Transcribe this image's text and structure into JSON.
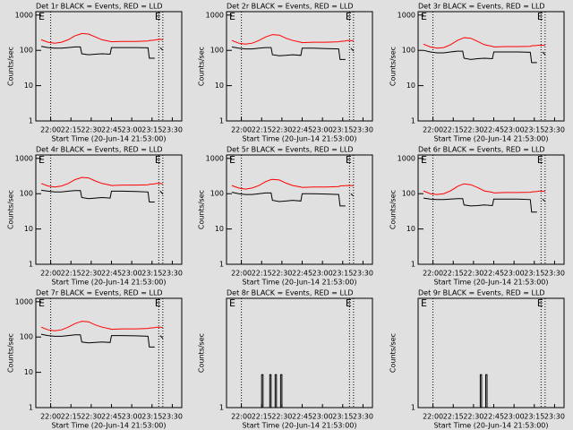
{
  "chart_data": [
    {
      "type": "line",
      "title": "Det 1r BLACK = Events, RED = LLD",
      "ylabel": "Counts/sec",
      "xlabel": "Start Time (20-Jun-14 21:53:00)",
      "log_y": true,
      "xlim": [
        -4,
        104
      ],
      "ylim": [
        1,
        1250
      ],
      "xticks": [
        {
          "value": 7,
          "label": "22:00"
        },
        {
          "value": 22,
          "label": "22:15"
        },
        {
          "value": 37,
          "label": "22:30"
        },
        {
          "value": 52,
          "label": "22:45"
        },
        {
          "value": 67,
          "label": "23:00"
        },
        {
          "value": 82,
          "label": "23:15"
        },
        {
          "value": 97,
          "label": "23:30"
        }
      ],
      "yticks": [
        1,
        10,
        100,
        1000
      ],
      "dotted_lines": [
        7,
        87,
        90
      ],
      "markers": [
        {
          "x": -2,
          "label": "E"
        },
        {
          "x": 84,
          "label": "E"
        }
      ],
      "x": [
        0,
        5,
        10,
        15,
        20,
        25,
        29,
        30,
        35,
        40,
        45,
        51,
        52,
        60,
        70,
        79,
        80,
        84,
        85,
        88,
        90
      ],
      "series": [
        {
          "name": "Events",
          "color": "#000000",
          "values": [
            130,
            120,
            115,
            115,
            120,
            125,
            125,
            80,
            75,
            78,
            80,
            78,
            120,
            120,
            120,
            118,
            60,
            60,
            null,
            120,
            100
          ]
        },
        {
          "name": "LLD",
          "color": "#ff0000",
          "values": [
            200,
            170,
            160,
            170,
            200,
            260,
            290,
            300,
            290,
            240,
            200,
            180,
            175,
            180,
            180,
            185,
            190,
            195,
            200,
            205,
            200
          ]
        }
      ]
    },
    {
      "type": "line",
      "title": "Det 2r BLACK = Events, RED = LLD",
      "ylabel": "Counts/sec",
      "xlabel": "Start Time (20-Jun-14 21:53:00)",
      "log_y": true,
      "xlim": [
        -4,
        104
      ],
      "ylim": [
        1,
        1250
      ],
      "xticks": [
        {
          "value": 7,
          "label": "22:00"
        },
        {
          "value": 22,
          "label": "22:15"
        },
        {
          "value": 37,
          "label": "22:30"
        },
        {
          "value": 52,
          "label": "22:45"
        },
        {
          "value": 67,
          "label": "23:00"
        },
        {
          "value": 82,
          "label": "23:15"
        },
        {
          "value": 97,
          "label": "23:30"
        }
      ],
      "yticks": [
        1,
        10,
        100,
        1000
      ],
      "dotted_lines": [
        7,
        87,
        90
      ],
      "markers": [
        {
          "x": -2,
          "label": "E"
        },
        {
          "x": 84,
          "label": "E"
        }
      ],
      "x": [
        0,
        5,
        10,
        15,
        20,
        25,
        29,
        30,
        35,
        40,
        45,
        51,
        52,
        60,
        70,
        79,
        80,
        84,
        85,
        88,
        90
      ],
      "series": [
        {
          "name": "Events",
          "color": "#000000",
          "values": [
            125,
            115,
            110,
            110,
            115,
            120,
            120,
            75,
            70,
            72,
            75,
            72,
            115,
            115,
            112,
            110,
            55,
            55,
            null,
            115,
            95
          ]
        },
        {
          "name": "LLD",
          "color": "#ff0000",
          "values": [
            190,
            160,
            150,
            160,
            190,
            240,
            270,
            280,
            270,
            220,
            190,
            170,
            165,
            170,
            170,
            175,
            180,
            185,
            190,
            190,
            185
          ]
        }
      ]
    },
    {
      "type": "line",
      "title": "Det 3r BLACK = Events, RED = LLD",
      "ylabel": "Counts/sec",
      "xlabel": "Start Time (20-Jun-14 21:53:00)",
      "log_y": true,
      "xlim": [
        -4,
        104
      ],
      "ylim": [
        1,
        1250
      ],
      "xticks": [
        {
          "value": 7,
          "label": "22:00"
        },
        {
          "value": 22,
          "label": "22:15"
        },
        {
          "value": 37,
          "label": "22:30"
        },
        {
          "value": 52,
          "label": "22:45"
        },
        {
          "value": 67,
          "label": "23:00"
        },
        {
          "value": 82,
          "label": "23:15"
        },
        {
          "value": 97,
          "label": "23:30"
        }
      ],
      "yticks": [
        1,
        10,
        100,
        1000
      ],
      "dotted_lines": [
        7,
        87,
        90
      ],
      "markers": [
        {
          "x": -2,
          "label": "E"
        },
        {
          "x": 84,
          "label": "E"
        }
      ],
      "x": [
        0,
        5,
        10,
        15,
        20,
        25,
        29,
        30,
        35,
        40,
        45,
        51,
        52,
        60,
        70,
        79,
        80,
        84,
        85,
        88,
        90
      ],
      "series": [
        {
          "name": "Events",
          "color": "#000000",
          "values": [
            100,
            90,
            85,
            85,
            90,
            95,
            95,
            60,
            55,
            58,
            60,
            58,
            90,
            90,
            90,
            88,
            45,
            45,
            null,
            90,
            75
          ]
        },
        {
          "name": "LLD",
          "color": "#ff0000",
          "values": [
            150,
            125,
            115,
            120,
            145,
            190,
            220,
            230,
            220,
            180,
            145,
            130,
            125,
            128,
            128,
            130,
            135,
            138,
            140,
            140,
            138
          ]
        }
      ]
    },
    {
      "type": "line",
      "title": "Det 4r BLACK = Events, RED = LLD",
      "ylabel": "Counts/sec",
      "xlabel": "Start Time (20-Jun-14 21:53:00)",
      "log_y": true,
      "xlim": [
        -4,
        104
      ],
      "ylim": [
        1,
        1250
      ],
      "xticks": [
        {
          "value": 7,
          "label": "22:00"
        },
        {
          "value": 22,
          "label": "22:15"
        },
        {
          "value": 37,
          "label": "22:30"
        },
        {
          "value": 52,
          "label": "22:45"
        },
        {
          "value": 67,
          "label": "23:00"
        },
        {
          "value": 82,
          "label": "23:15"
        },
        {
          "value": 97,
          "label": "23:30"
        }
      ],
      "yticks": [
        1,
        10,
        100,
        1000
      ],
      "dotted_lines": [
        7,
        87,
        90
      ],
      "markers": [
        {
          "x": -2,
          "label": "E"
        },
        {
          "x": 84,
          "label": "E"
        }
      ],
      "x": [
        0,
        5,
        10,
        15,
        20,
        25,
        29,
        30,
        35,
        40,
        45,
        51,
        52,
        60,
        70,
        79,
        80,
        84,
        85,
        88,
        90
      ],
      "series": [
        {
          "name": "Events",
          "color": "#000000",
          "values": [
            125,
            118,
            112,
            112,
            118,
            122,
            122,
            78,
            72,
            75,
            78,
            75,
            118,
            118,
            115,
            112,
            58,
            58,
            null,
            118,
            98
          ]
        },
        {
          "name": "LLD",
          "color": "#ff0000",
          "values": [
            195,
            165,
            155,
            165,
            195,
            250,
            280,
            290,
            280,
            230,
            195,
            175,
            170,
            175,
            175,
            180,
            185,
            190,
            195,
            195,
            190
          ]
        }
      ]
    },
    {
      "type": "line",
      "title": "Det 5r BLACK = Events, RED = LLD",
      "ylabel": "Counts/sec",
      "xlabel": "Start Time (20-Jun-14 21:53:00)",
      "log_y": true,
      "xlim": [
        -4,
        104
      ],
      "ylim": [
        1,
        1250
      ],
      "xticks": [
        {
          "value": 7,
          "label": "22:00"
        },
        {
          "value": 22,
          "label": "22:15"
        },
        {
          "value": 37,
          "label": "22:30"
        },
        {
          "value": 52,
          "label": "22:45"
        },
        {
          "value": 67,
          "label": "23:00"
        },
        {
          "value": 82,
          "label": "23:15"
        },
        {
          "value": 97,
          "label": "23:30"
        }
      ],
      "yticks": [
        1,
        10,
        100,
        1000
      ],
      "dotted_lines": [
        7,
        87,
        90
      ],
      "markers": [
        {
          "x": -2,
          "label": "E"
        },
        {
          "x": 84,
          "label": "E"
        }
      ],
      "x": [
        0,
        5,
        10,
        15,
        20,
        25,
        29,
        30,
        35,
        40,
        45,
        51,
        52,
        60,
        70,
        79,
        80,
        84,
        85,
        88,
        90
      ],
      "series": [
        {
          "name": "Events",
          "color": "#000000",
          "values": [
            110,
            100,
            95,
            95,
            100,
            105,
            105,
            65,
            60,
            62,
            65,
            62,
            100,
            100,
            98,
            95,
            45,
            45,
            null,
            100,
            85
          ]
        },
        {
          "name": "LLD",
          "color": "#ff0000",
          "values": [
            170,
            145,
            135,
            145,
            170,
            220,
            250,
            255,
            245,
            200,
            170,
            155,
            150,
            155,
            155,
            160,
            165,
            168,
            170,
            170,
            168
          ]
        }
      ]
    },
    {
      "type": "line",
      "title": "Det 6r BLACK = Events, RED = LLD",
      "ylabel": "Counts/sec",
      "xlabel": "Start Time (20-Jun-14 21:53:00)",
      "log_y": true,
      "xlim": [
        -4,
        104
      ],
      "ylim": [
        1,
        1250
      ],
      "xticks": [
        {
          "value": 7,
          "label": "22:00"
        },
        {
          "value": 22,
          "label": "22:15"
        },
        {
          "value": 37,
          "label": "22:30"
        },
        {
          "value": 52,
          "label": "22:45"
        },
        {
          "value": 67,
          "label": "23:00"
        },
        {
          "value": 82,
          "label": "23:15"
        },
        {
          "value": 97,
          "label": "23:30"
        }
      ],
      "yticks": [
        1,
        10,
        100,
        1000
      ],
      "dotted_lines": [
        7,
        87,
        90
      ],
      "markers": [
        {
          "x": -2,
          "label": "E"
        },
        {
          "x": 84,
          "label": "E"
        }
      ],
      "x": [
        0,
        5,
        10,
        15,
        20,
        25,
        29,
        30,
        35,
        40,
        45,
        51,
        52,
        60,
        70,
        79,
        80,
        84,
        85,
        88,
        90
      ],
      "series": [
        {
          "name": "Events",
          "color": "#000000",
          "values": [
            75,
            70,
            68,
            68,
            70,
            72,
            72,
            48,
            45,
            46,
            48,
            46,
            70,
            70,
            70,
            68,
            30,
            30,
            null,
            70,
            60
          ]
        },
        {
          "name": "LLD",
          "color": "#ff0000",
          "values": [
            120,
            100,
            95,
            100,
            120,
            160,
            185,
            190,
            180,
            150,
            120,
            110,
            105,
            108,
            108,
            110,
            112,
            115,
            118,
            118,
            115
          ]
        }
      ]
    },
    {
      "type": "line",
      "title": "Det 7r BLACK = Events, RED = LLD",
      "ylabel": "Counts/sec",
      "xlabel": "Start Time (20-Jun-14 21:53:00)",
      "log_y": true,
      "xlim": [
        -4,
        104
      ],
      "ylim": [
        1,
        1250
      ],
      "xticks": [
        {
          "value": 7,
          "label": "22:00"
        },
        {
          "value": 22,
          "label": "22:15"
        },
        {
          "value": 37,
          "label": "22:30"
        },
        {
          "value": 52,
          "label": "22:45"
        },
        {
          "value": 67,
          "label": "23:00"
        },
        {
          "value": 82,
          "label": "23:15"
        },
        {
          "value": 97,
          "label": "23:30"
        }
      ],
      "yticks": [
        1,
        10,
        100,
        1000
      ],
      "dotted_lines": [
        7,
        87,
        90
      ],
      "markers": [
        {
          "x": -2,
          "label": "E"
        },
        {
          "x": 84,
          "label": "E"
        }
      ],
      "x": [
        0,
        5,
        10,
        15,
        20,
        25,
        29,
        30,
        35,
        40,
        45,
        51,
        52,
        60,
        70,
        79,
        80,
        84,
        85,
        88,
        90
      ],
      "series": [
        {
          "name": "Events",
          "color": "#000000",
          "values": [
            120,
            110,
            105,
            105,
            110,
            115,
            115,
            72,
            68,
            70,
            72,
            70,
            110,
            110,
            108,
            105,
            52,
            52,
            null,
            110,
            92
          ]
        },
        {
          "name": "LLD",
          "color": "#ff0000",
          "values": [
            190,
            160,
            150,
            160,
            190,
            240,
            270,
            280,
            270,
            220,
            190,
            170,
            165,
            170,
            170,
            175,
            180,
            185,
            190,
            190,
            185
          ]
        }
      ]
    },
    {
      "type": "line",
      "title": "Det 8r BLACK = Events, RED = LLD",
      "ylabel": "Counts/sec",
      "xlabel": "Start Time (20-Jun-14 21:53:00)",
      "log_y": true,
      "xlim": [
        -4,
        104
      ],
      "ylim": [
        1,
        10
      ],
      "xticks": [
        {
          "value": 7,
          "label": "22:00"
        },
        {
          "value": 22,
          "label": "22:15"
        },
        {
          "value": 37,
          "label": "22:30"
        },
        {
          "value": 52,
          "label": "22:45"
        },
        {
          "value": 67,
          "label": "23:00"
        },
        {
          "value": 82,
          "label": "23:15"
        },
        {
          "value": 97,
          "label": "23:30"
        }
      ],
      "yticks": [
        1
      ],
      "dotted_lines": [
        7,
        87,
        90
      ],
      "markers": [
        {
          "x": -2,
          "label": "E"
        },
        {
          "x": 84,
          "label": "E"
        }
      ],
      "x": [
        0,
        22,
        22,
        23,
        23,
        28,
        28,
        29,
        29,
        32,
        32,
        33,
        33,
        36,
        36,
        37,
        37,
        97
      ],
      "series": [
        {
          "name": "Events",
          "color": "#000000",
          "values": [
            1,
            1,
            2,
            2,
            1,
            1,
            2,
            2,
            1,
            1,
            2,
            2,
            1,
            1,
            2,
            2,
            1,
            1
          ]
        }
      ]
    },
    {
      "type": "line",
      "title": "Det 9r BLACK = Events, RED = LLD",
      "ylabel": "Counts/sec",
      "xlabel": "Start Time (20-Jun-14 21:53:00)",
      "log_y": true,
      "xlim": [
        -4,
        104
      ],
      "ylim": [
        1,
        10
      ],
      "xticks": [
        {
          "value": 7,
          "label": "22:00"
        },
        {
          "value": 22,
          "label": "22:15"
        },
        {
          "value": 37,
          "label": "22:30"
        },
        {
          "value": 52,
          "label": "22:45"
        },
        {
          "value": 67,
          "label": "23:00"
        },
        {
          "value": 82,
          "label": "23:15"
        },
        {
          "value": 97,
          "label": "23:30"
        }
      ],
      "yticks": [
        1
      ],
      "dotted_lines": [
        7,
        87,
        90
      ],
      "markers": [
        {
          "x": -2,
          "label": "E"
        },
        {
          "x": 84,
          "label": "E"
        }
      ],
      "x": [
        0,
        42,
        42,
        43,
        43,
        46,
        46,
        47,
        47,
        97
      ],
      "series": [
        {
          "name": "Events",
          "color": "#000000",
          "values": [
            1,
            1,
            2,
            2,
            1,
            1,
            2,
            2,
            1,
            1
          ]
        }
      ]
    }
  ]
}
